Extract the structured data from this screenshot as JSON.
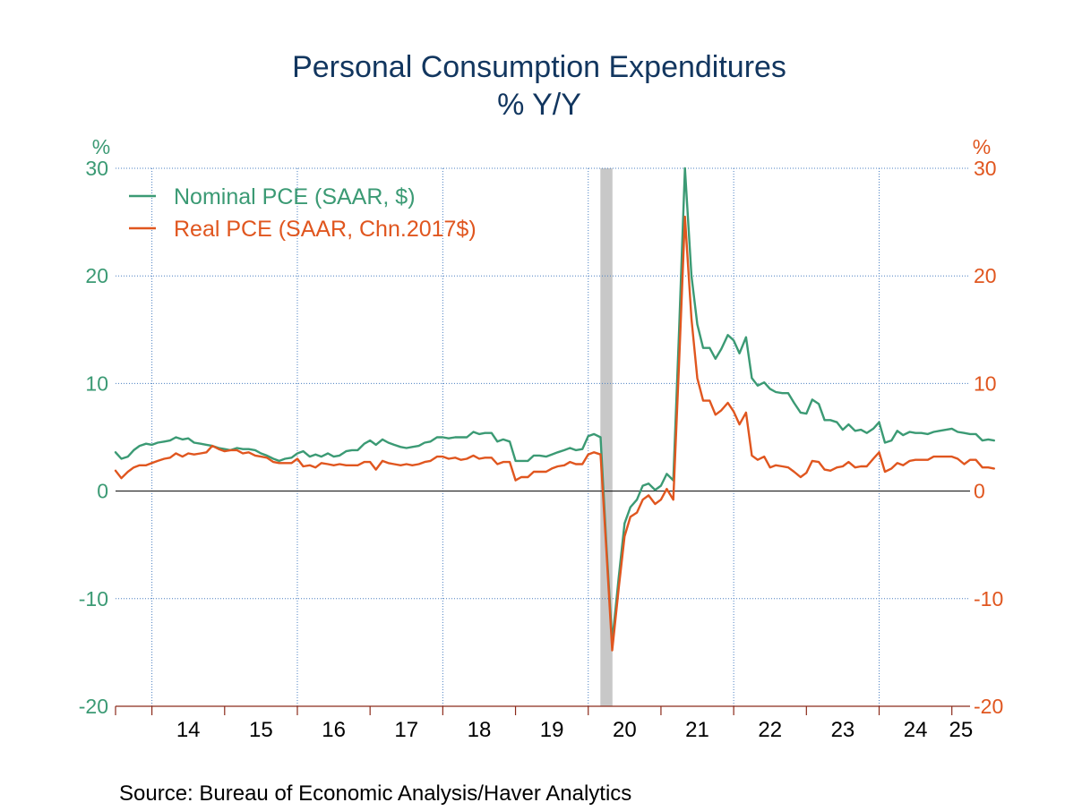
{
  "chart_data": {
    "type": "line",
    "title": "Personal Consumption Expenditures",
    "subtitle": "% Y/Y",
    "ylabel_left": "%",
    "ylabel_right": "%",
    "ylim": [
      -20,
      30
    ],
    "yticks": [
      30,
      20,
      10,
      0,
      -10,
      -20
    ],
    "yticks_left_labels": [
      "30",
      "20",
      "10",
      "0",
      "-10",
      "-20"
    ],
    "yticks_right_labels": [
      "30",
      "20",
      "10",
      "0",
      "-10",
      "-20"
    ],
    "x_start": 2013.5,
    "x_end": 2025.25,
    "x_tick_labels": [
      "14",
      "15",
      "16",
      "17",
      "18",
      "19",
      "20",
      "21",
      "22",
      "23",
      "24",
      "25"
    ],
    "x_tick_years": [
      2014,
      2015,
      2016,
      2017,
      2018,
      2019,
      2020,
      2021,
      2022,
      2023,
      2024,
      2025
    ],
    "recession": {
      "start": 2020.167,
      "end": 2020.333,
      "color": "#c8c8c8"
    },
    "grid": true,
    "legend_position": "top-left",
    "source": "Source:  Bureau of Economic Analysis/Haver Analytics",
    "series": [
      {
        "name": "Nominal PCE (SAAR, $)",
        "color": "#3b9a74",
        "axis": "left",
        "points": [
          [
            2013.5,
            3.6
          ],
          [
            2013.58,
            3.0
          ],
          [
            2013.67,
            3.2
          ],
          [
            2013.75,
            3.8
          ],
          [
            2013.83,
            4.2
          ],
          [
            2013.92,
            4.4
          ],
          [
            2014.0,
            4.3
          ],
          [
            2014.08,
            4.5
          ],
          [
            2014.17,
            4.6
          ],
          [
            2014.25,
            4.7
          ],
          [
            2014.33,
            5.0
          ],
          [
            2014.42,
            4.8
          ],
          [
            2014.5,
            4.9
          ],
          [
            2014.58,
            4.5
          ],
          [
            2014.67,
            4.4
          ],
          [
            2014.75,
            4.3
          ],
          [
            2014.83,
            4.2
          ],
          [
            2014.92,
            4.0
          ],
          [
            2015.0,
            3.9
          ],
          [
            2015.08,
            3.8
          ],
          [
            2015.17,
            4.0
          ],
          [
            2015.25,
            3.9
          ],
          [
            2015.33,
            3.9
          ],
          [
            2015.42,
            3.8
          ],
          [
            2015.5,
            3.5
          ],
          [
            2015.58,
            3.3
          ],
          [
            2015.67,
            3.0
          ],
          [
            2015.75,
            2.8
          ],
          [
            2015.83,
            3.0
          ],
          [
            2015.92,
            3.1
          ],
          [
            2016.0,
            3.5
          ],
          [
            2016.08,
            3.7
          ],
          [
            2016.17,
            3.2
          ],
          [
            2016.25,
            3.4
          ],
          [
            2016.33,
            3.2
          ],
          [
            2016.42,
            3.5
          ],
          [
            2016.5,
            3.2
          ],
          [
            2016.58,
            3.3
          ],
          [
            2016.67,
            3.7
          ],
          [
            2016.75,
            3.8
          ],
          [
            2016.83,
            3.8
          ],
          [
            2016.92,
            4.4
          ],
          [
            2017.0,
            4.7
          ],
          [
            2017.08,
            4.3
          ],
          [
            2017.17,
            4.8
          ],
          [
            2017.25,
            4.5
          ],
          [
            2017.33,
            4.3
          ],
          [
            2017.42,
            4.1
          ],
          [
            2017.5,
            4.0
          ],
          [
            2017.58,
            4.1
          ],
          [
            2017.67,
            4.2
          ],
          [
            2017.75,
            4.5
          ],
          [
            2017.83,
            4.6
          ],
          [
            2017.92,
            5.0
          ],
          [
            2018.0,
            5.0
          ],
          [
            2018.08,
            4.9
          ],
          [
            2018.17,
            5.0
          ],
          [
            2018.25,
            5.0
          ],
          [
            2018.33,
            5.0
          ],
          [
            2018.42,
            5.5
          ],
          [
            2018.5,
            5.3
          ],
          [
            2018.58,
            5.4
          ],
          [
            2018.67,
            5.4
          ],
          [
            2018.75,
            4.6
          ],
          [
            2018.83,
            4.8
          ],
          [
            2018.92,
            4.6
          ],
          [
            2019.0,
            2.8
          ],
          [
            2019.08,
            2.8
          ],
          [
            2019.17,
            2.8
          ],
          [
            2019.25,
            3.3
          ],
          [
            2019.33,
            3.3
          ],
          [
            2019.42,
            3.2
          ],
          [
            2019.5,
            3.4
          ],
          [
            2019.58,
            3.6
          ],
          [
            2019.67,
            3.8
          ],
          [
            2019.75,
            4.0
          ],
          [
            2019.83,
            3.8
          ],
          [
            2019.92,
            3.9
          ],
          [
            2020.0,
            5.1
          ],
          [
            2020.08,
            5.3
          ],
          [
            2020.17,
            5.0
          ],
          [
            2020.25,
            -5.0
          ],
          [
            2020.33,
            -14.0
          ],
          [
            2020.42,
            -8.0
          ],
          [
            2020.5,
            -3.0
          ],
          [
            2020.58,
            -1.5
          ],
          [
            2020.67,
            -0.8
          ],
          [
            2020.75,
            0.5
          ],
          [
            2020.83,
            0.7
          ],
          [
            2020.92,
            0.1
          ],
          [
            2021.0,
            0.5
          ],
          [
            2021.08,
            1.6
          ],
          [
            2021.17,
            1.0
          ],
          [
            2021.25,
            15.0
          ],
          [
            2021.33,
            30.0
          ],
          [
            2021.42,
            20.0
          ],
          [
            2021.5,
            15.5
          ],
          [
            2021.58,
            13.3
          ],
          [
            2021.67,
            13.3
          ],
          [
            2021.75,
            12.3
          ],
          [
            2021.83,
            13.2
          ],
          [
            2021.92,
            14.5
          ],
          [
            2022.0,
            14.0
          ],
          [
            2022.08,
            12.8
          ],
          [
            2022.17,
            14.3
          ],
          [
            2022.25,
            10.5
          ],
          [
            2022.33,
            9.8
          ],
          [
            2022.42,
            10.1
          ],
          [
            2022.5,
            9.5
          ],
          [
            2022.58,
            9.2
          ],
          [
            2022.67,
            9.1
          ],
          [
            2022.75,
            9.1
          ],
          [
            2022.83,
            8.2
          ],
          [
            2022.92,
            7.3
          ],
          [
            2023.0,
            7.2
          ],
          [
            2023.08,
            8.5
          ],
          [
            2023.17,
            8.1
          ],
          [
            2023.25,
            6.6
          ],
          [
            2023.33,
            6.6
          ],
          [
            2023.42,
            6.4
          ],
          [
            2023.5,
            5.7
          ],
          [
            2023.58,
            6.2
          ],
          [
            2023.67,
            5.6
          ],
          [
            2023.75,
            5.7
          ],
          [
            2023.83,
            5.4
          ],
          [
            2023.92,
            5.8
          ],
          [
            2024.0,
            6.4
          ],
          [
            2024.08,
            4.5
          ],
          [
            2024.17,
            4.7
          ],
          [
            2024.25,
            5.6
          ],
          [
            2024.33,
            5.2
          ],
          [
            2024.42,
            5.5
          ],
          [
            2024.5,
            5.4
          ],
          [
            2024.58,
            5.4
          ],
          [
            2024.67,
            5.3
          ],
          [
            2024.75,
            5.5
          ],
          [
            2024.83,
            5.6
          ],
          [
            2024.92,
            5.7
          ],
          [
            2025.0,
            5.8
          ],
          [
            2025.08,
            5.5
          ],
          [
            2025.17,
            5.4
          ],
          [
            2025.25,
            5.3
          ],
          [
            2025.33,
            5.3
          ],
          [
            2025.42,
            4.7
          ],
          [
            2025.5,
            4.8
          ],
          [
            2025.58,
            4.7
          ]
        ]
      },
      {
        "name": "Real PCE (SAAR, Chn.2017$)",
        "color": "#e0561f",
        "axis": "right",
        "points": [
          [
            2013.5,
            1.9
          ],
          [
            2013.58,
            1.2
          ],
          [
            2013.67,
            1.8
          ],
          [
            2013.75,
            2.2
          ],
          [
            2013.83,
            2.4
          ],
          [
            2013.92,
            2.4
          ],
          [
            2014.0,
            2.6
          ],
          [
            2014.08,
            2.8
          ],
          [
            2014.17,
            3.0
          ],
          [
            2014.25,
            3.1
          ],
          [
            2014.33,
            3.5
          ],
          [
            2014.42,
            3.2
          ],
          [
            2014.5,
            3.5
          ],
          [
            2014.58,
            3.4
          ],
          [
            2014.67,
            3.5
          ],
          [
            2014.75,
            3.6
          ],
          [
            2014.83,
            4.2
          ],
          [
            2014.92,
            3.9
          ],
          [
            2015.0,
            3.7
          ],
          [
            2015.08,
            3.8
          ],
          [
            2015.17,
            3.8
          ],
          [
            2015.25,
            3.5
          ],
          [
            2015.33,
            3.6
          ],
          [
            2015.42,
            3.3
          ],
          [
            2015.5,
            3.2
          ],
          [
            2015.58,
            3.1
          ],
          [
            2015.67,
            2.7
          ],
          [
            2015.75,
            2.6
          ],
          [
            2015.83,
            2.6
          ],
          [
            2015.92,
            2.6
          ],
          [
            2016.0,
            3.0
          ],
          [
            2016.08,
            2.3
          ],
          [
            2016.17,
            2.4
          ],
          [
            2016.25,
            2.2
          ],
          [
            2016.33,
            2.6
          ],
          [
            2016.42,
            2.5
          ],
          [
            2016.5,
            2.4
          ],
          [
            2016.58,
            2.5
          ],
          [
            2016.67,
            2.4
          ],
          [
            2016.75,
            2.4
          ],
          [
            2016.83,
            2.4
          ],
          [
            2016.92,
            2.7
          ],
          [
            2017.0,
            2.7
          ],
          [
            2017.08,
            2.0
          ],
          [
            2017.17,
            2.8
          ],
          [
            2017.25,
            2.6
          ],
          [
            2017.33,
            2.5
          ],
          [
            2017.42,
            2.4
          ],
          [
            2017.5,
            2.5
          ],
          [
            2017.58,
            2.4
          ],
          [
            2017.67,
            2.5
          ],
          [
            2017.75,
            2.7
          ],
          [
            2017.83,
            2.8
          ],
          [
            2017.92,
            3.2
          ],
          [
            2018.0,
            3.2
          ],
          [
            2018.08,
            3.0
          ],
          [
            2018.17,
            3.1
          ],
          [
            2018.25,
            2.9
          ],
          [
            2018.33,
            3.0
          ],
          [
            2018.42,
            3.3
          ],
          [
            2018.5,
            3.0
          ],
          [
            2018.58,
            3.1
          ],
          [
            2018.67,
            3.1
          ],
          [
            2018.75,
            2.5
          ],
          [
            2018.83,
            2.7
          ],
          [
            2018.92,
            2.7
          ],
          [
            2019.0,
            1.0
          ],
          [
            2019.08,
            1.3
          ],
          [
            2019.17,
            1.3
          ],
          [
            2019.25,
            1.8
          ],
          [
            2019.33,
            1.8
          ],
          [
            2019.42,
            1.8
          ],
          [
            2019.5,
            2.1
          ],
          [
            2019.58,
            2.3
          ],
          [
            2019.67,
            2.4
          ],
          [
            2019.75,
            2.7
          ],
          [
            2019.83,
            2.5
          ],
          [
            2019.92,
            2.5
          ],
          [
            2020.0,
            3.4
          ],
          [
            2020.08,
            3.6
          ],
          [
            2020.17,
            3.4
          ],
          [
            2020.25,
            -5.5
          ],
          [
            2020.33,
            -14.8
          ],
          [
            2020.42,
            -9.0
          ],
          [
            2020.5,
            -4.2
          ],
          [
            2020.58,
            -2.4
          ],
          [
            2020.67,
            -2.0
          ],
          [
            2020.75,
            -0.8
          ],
          [
            2020.83,
            -0.4
          ],
          [
            2020.92,
            -1.2
          ],
          [
            2021.0,
            -0.8
          ],
          [
            2021.08,
            0.2
          ],
          [
            2021.17,
            -0.8
          ],
          [
            2021.25,
            12.0
          ],
          [
            2021.33,
            25.5
          ],
          [
            2021.42,
            16.0
          ],
          [
            2021.5,
            10.5
          ],
          [
            2021.58,
            8.4
          ],
          [
            2021.67,
            8.4
          ],
          [
            2021.75,
            7.1
          ],
          [
            2021.83,
            7.5
          ],
          [
            2021.92,
            8.2
          ],
          [
            2022.0,
            7.4
          ],
          [
            2022.08,
            6.2
          ],
          [
            2022.17,
            7.3
          ],
          [
            2022.25,
            3.3
          ],
          [
            2022.33,
            2.9
          ],
          [
            2022.42,
            3.2
          ],
          [
            2022.5,
            2.2
          ],
          [
            2022.58,
            2.4
          ],
          [
            2022.67,
            2.3
          ],
          [
            2022.75,
            2.2
          ],
          [
            2022.83,
            1.8
          ],
          [
            2022.92,
            1.3
          ],
          [
            2023.0,
            1.7
          ],
          [
            2023.08,
            2.8
          ],
          [
            2023.17,
            2.7
          ],
          [
            2023.25,
            2.0
          ],
          [
            2023.33,
            1.9
          ],
          [
            2023.42,
            2.2
          ],
          [
            2023.5,
            2.3
          ],
          [
            2023.58,
            2.7
          ],
          [
            2023.67,
            2.2
          ],
          [
            2023.75,
            2.3
          ],
          [
            2023.83,
            2.3
          ],
          [
            2023.92,
            3.0
          ],
          [
            2024.0,
            3.6
          ],
          [
            2024.08,
            1.8
          ],
          [
            2024.17,
            2.1
          ],
          [
            2024.25,
            2.6
          ],
          [
            2024.33,
            2.4
          ],
          [
            2024.42,
            2.8
          ],
          [
            2024.5,
            2.9
          ],
          [
            2024.58,
            2.9
          ],
          [
            2024.67,
            2.9
          ],
          [
            2024.75,
            3.2
          ],
          [
            2024.83,
            3.2
          ],
          [
            2024.92,
            3.2
          ],
          [
            2025.0,
            3.2
          ],
          [
            2025.08,
            3.0
          ],
          [
            2025.17,
            2.5
          ],
          [
            2025.25,
            2.9
          ],
          [
            2025.33,
            2.9
          ],
          [
            2025.42,
            2.2
          ],
          [
            2025.5,
            2.2
          ],
          [
            2025.58,
            2.1
          ]
        ]
      }
    ]
  }
}
